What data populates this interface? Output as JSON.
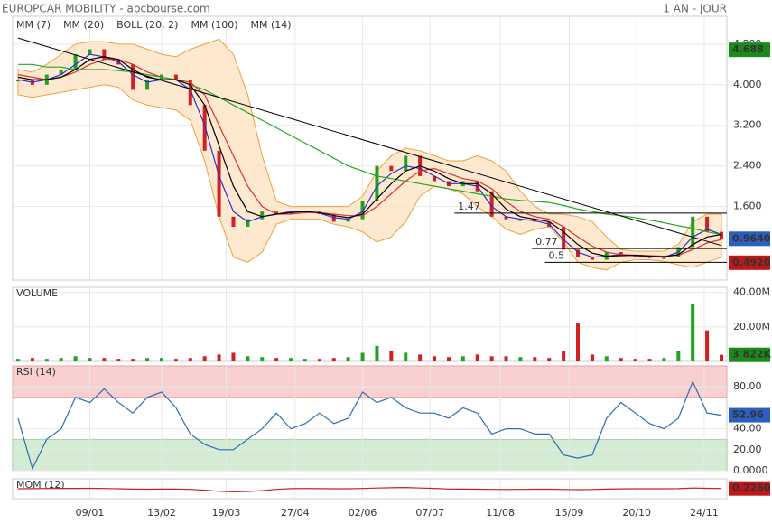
{
  "header": {
    "title": "EUROPCAR MOBILITY - abcbourse.com",
    "period": "1 AN - JOUR"
  },
  "chart_data": [
    {
      "type": "line",
      "values": [
        4.1,
        4.0,
        4.2,
        4.3,
        4.6,
        4.7,
        4.5,
        4.4,
        3.9,
        4.1,
        4.2,
        4.1,
        3.6,
        2.7,
        1.4,
        1.2,
        1.35,
        1.5,
        1.45,
        1.5,
        1.5,
        1.45,
        1.3,
        1.35,
        1.7,
        2.4,
        2.3,
        2.6,
        2.2,
        2.1,
        2.0,
        2.1,
        1.9,
        1.4,
        1.35,
        1.35,
        1.3,
        1.2,
        0.75,
        0.6,
        0.55,
        0.7,
        0.65,
        0.62,
        0.6,
        0.6,
        0.8,
        1.4,
        1.1,
        0.964
      ],
      "up_color": "#22a022",
      "down_color": "#d02020",
      "series": [
        {
          "name": "MM (7)",
          "color": "#3030c8",
          "values": [
            4.1,
            4.05,
            4.1,
            4.2,
            4.4,
            4.6,
            4.55,
            4.45,
            4.2,
            4.05,
            4.1,
            4.1,
            3.9,
            3.2,
            2.2,
            1.5,
            1.3,
            1.4,
            1.45,
            1.5,
            1.5,
            1.47,
            1.38,
            1.35,
            1.5,
            2.0,
            2.25,
            2.4,
            2.35,
            2.2,
            2.05,
            2.05,
            2.0,
            1.6,
            1.4,
            1.35,
            1.32,
            1.25,
            0.95,
            0.7,
            0.6,
            0.62,
            0.65,
            0.63,
            0.61,
            0.6,
            0.7,
            1.0,
            1.15,
            1.05
          ]
        },
        {
          "name": "MM (20)",
          "color": "#e03030",
          "values": [
            4.2,
            4.15,
            4.1,
            4.15,
            4.25,
            4.4,
            4.5,
            4.5,
            4.4,
            4.25,
            4.15,
            4.1,
            4.05,
            3.8,
            3.2,
            2.6,
            2.0,
            1.6,
            1.45,
            1.45,
            1.48,
            1.48,
            1.45,
            1.42,
            1.42,
            1.6,
            1.85,
            2.1,
            2.3,
            2.35,
            2.25,
            2.15,
            2.1,
            1.95,
            1.7,
            1.5,
            1.4,
            1.35,
            1.2,
            1.0,
            0.82,
            0.7,
            0.65,
            0.64,
            0.63,
            0.62,
            0.64,
            0.75,
            0.88,
            0.95
          ]
        },
        {
          "name": "BOLL (20, 2)",
          "color": "#f0a040",
          "upper": [
            4.3,
            4.25,
            4.4,
            4.6,
            4.8,
            4.85,
            4.85,
            4.8,
            4.8,
            4.7,
            4.6,
            4.55,
            4.7,
            4.8,
            4.9,
            4.6,
            3.8,
            2.6,
            1.7,
            1.6,
            1.6,
            1.6,
            1.6,
            1.6,
            1.8,
            2.3,
            2.6,
            2.75,
            2.7,
            2.6,
            2.5,
            2.5,
            2.6,
            2.5,
            2.3,
            1.9,
            1.6,
            1.45,
            1.45,
            1.4,
            1.3,
            1.0,
            0.75,
            0.72,
            0.72,
            0.72,
            0.85,
            1.3,
            1.45,
            1.45
          ],
          "lower": [
            3.8,
            3.75,
            3.8,
            3.85,
            3.9,
            3.95,
            4.0,
            3.95,
            3.7,
            3.6,
            3.55,
            3.5,
            3.3,
            2.5,
            1.4,
            0.6,
            0.5,
            0.7,
            1.25,
            1.35,
            1.35,
            1.35,
            1.25,
            1.2,
            1.1,
            0.9,
            1.0,
            1.3,
            1.8,
            2.0,
            1.95,
            1.85,
            1.6,
            1.4,
            1.15,
            1.05,
            1.15,
            1.2,
            0.9,
            0.5,
            0.4,
            0.35,
            0.5,
            0.55,
            0.55,
            0.52,
            0.45,
            0.4,
            0.5,
            0.6
          ]
        },
        {
          "name": "MM (100)",
          "color": "#22aa22",
          "values": [
            4.4,
            4.4,
            4.35,
            4.35,
            4.3,
            4.3,
            4.3,
            4.28,
            4.25,
            4.2,
            4.15,
            4.1,
            4.0,
            3.9,
            3.75,
            3.6,
            3.45,
            3.3,
            3.15,
            3.0,
            2.85,
            2.7,
            2.55,
            2.4,
            2.3,
            2.2,
            2.15,
            2.1,
            2.05,
            2.0,
            1.95,
            1.9,
            1.85,
            1.8,
            1.75,
            1.72,
            1.7,
            1.68,
            1.62,
            1.55,
            1.5,
            1.45,
            1.42,
            1.38,
            1.33,
            1.28,
            1.22,
            1.17,
            1.1,
            1.05
          ]
        },
        {
          "name": "MM (14)",
          "color": "#000000",
          "values": [
            4.15,
            4.1,
            4.1,
            4.15,
            4.3,
            4.5,
            4.55,
            4.5,
            4.3,
            4.15,
            4.1,
            4.1,
            4.0,
            3.6,
            2.8,
            2.0,
            1.5,
            1.4,
            1.45,
            1.48,
            1.5,
            1.48,
            1.42,
            1.38,
            1.45,
            1.75,
            2.05,
            2.3,
            2.4,
            2.3,
            2.15,
            2.05,
            2.05,
            1.85,
            1.55,
            1.4,
            1.35,
            1.3,
            1.1,
            0.85,
            0.68,
            0.62,
            0.63,
            0.64,
            0.62,
            0.61,
            0.65,
            0.85,
            1.0,
            1.05
          ]
        }
      ],
      "xlim": [
        0,
        49
      ],
      "xticks": [
        {
          "value": 5,
          "label": "09/01"
        },
        {
          "value": 10,
          "label": "13/02"
        },
        {
          "value": 14.5,
          "label": "19/03"
        },
        {
          "value": 19.3,
          "label": "27/04"
        },
        {
          "value": 24,
          "label": "02/06"
        },
        {
          "value": 28.7,
          "label": "07/07"
        },
        {
          "value": 33.6,
          "label": "11/08"
        },
        {
          "value": 38.4,
          "label": "15/09"
        },
        {
          "value": 43.1,
          "label": "20/10"
        },
        {
          "value": 47.8,
          "label": "24/11"
        }
      ],
      "ylim": [
        0.15,
        5.35
      ],
      "yticks": [
        {
          "value": 4.8,
          "label": "4.800"
        },
        {
          "value": 4.0,
          "label": "4.000"
        },
        {
          "value": 3.2,
          "label": "3.200"
        },
        {
          "value": 2.4,
          "label": "2.400"
        },
        {
          "value": 1.6,
          "label": "1.600"
        }
      ],
      "grid": true,
      "trendline": {
        "x": [
          0,
          49
        ],
        "y": [
          4.92,
          0.83
        ]
      },
      "levels": [
        {
          "label": "1.47",
          "value": 1.47,
          "from": 30.4
        },
        {
          "label": "0.77",
          "value": 0.77,
          "from": 35.8
        },
        {
          "label": "0.5",
          "value": 0.5,
          "from": 36.7
        }
      ],
      "markers": [
        {
          "value": 4.688,
          "label": "4.688",
          "color": "#1a8a1a"
        },
        {
          "value": 0.964,
          "label": "0.9640",
          "color": "#2a5fc0"
        },
        {
          "value": 0.492,
          "label": "0.4920",
          "color": "#c01818"
        }
      ]
    },
    {
      "type": "bar",
      "title": "VOLUME",
      "values": [
        1.5,
        2,
        1.5,
        2,
        3,
        2,
        2,
        1.5,
        1.5,
        2,
        2,
        1.5,
        2,
        3,
        4,
        5,
        3,
        2.5,
        2,
        2,
        1.5,
        1.5,
        2,
        2.5,
        5,
        9,
        6,
        5,
        4,
        3,
        2.5,
        3,
        4,
        3,
        3,
        2.5,
        2.5,
        2,
        6,
        22,
        4,
        3,
        2,
        1.5,
        1.5,
        2,
        6,
        33,
        18,
        3.822
      ],
      "up_color": "#22a022",
      "down_color": "#d02020",
      "ylim": [
        0,
        43
      ],
      "yticks": [
        {
          "value": 40,
          "label": "40.00M"
        },
        {
          "value": 20,
          "label": "20.00M"
        }
      ],
      "markers": [
        {
          "value": 3.822,
          "label": "3 822K",
          "color": "#1a8a1a"
        }
      ]
    },
    {
      "type": "line",
      "title": "RSI (14)",
      "series": [
        {
          "color": "#2a6db5",
          "values": [
            50,
            2,
            30,
            40,
            70,
            65,
            78,
            65,
            55,
            70,
            75,
            60,
            35,
            25,
            20,
            20,
            30,
            40,
            55,
            40,
            45,
            55,
            45,
            50,
            75,
            65,
            70,
            60,
            55,
            55,
            50,
            60,
            55,
            35,
            40,
            40,
            35,
            35,
            15,
            12,
            15,
            50,
            65,
            55,
            45,
            40,
            50,
            85,
            55,
            52.96
          ]
        }
      ],
      "ylim": [
        0,
        100
      ],
      "yticks": [
        {
          "value": 80,
          "label": "80.00"
        },
        {
          "value": 40,
          "label": "40.00"
        },
        {
          "value": 20,
          "label": "20.00"
        },
        {
          "value": 0,
          "label": "0.0000"
        }
      ],
      "overbought": 70,
      "oversold": 30,
      "markers": [
        {
          "value": 52.96,
          "label": "52.96",
          "color": "#2a5fc0"
        }
      ]
    },
    {
      "type": "line",
      "title": "MOM (12)",
      "series": [
        {
          "color": "#c82020",
          "values": [
            0,
            0.1,
            0.2,
            0.3,
            0.3,
            0.4,
            0.2,
            0,
            -0.3,
            -0.4,
            -0.3,
            -0.2,
            -0.5,
            -1.2,
            -2.0,
            -2.5,
            -2.2,
            -1.5,
            -0.5,
            0.1,
            0.2,
            0.1,
            0,
            0,
            0.2,
            0.6,
            0.8,
            1.0,
            0.6,
            0.3,
            -0.2,
            -0.3,
            -0.4,
            -0.5,
            -0.6,
            -0.5,
            -0.4,
            -0.4,
            -0.6,
            -0.7,
            -0.6,
            -0.3,
            -0.1,
            0,
            0,
            0,
            0.1,
            0.6,
            0.4,
            0.226
          ]
        }
      ],
      "ylim": [
        -8,
        8
      ],
      "markers": [
        {
          "value": 0.226,
          "label": "0.2260",
          "color": "#c01818"
        }
      ]
    }
  ]
}
